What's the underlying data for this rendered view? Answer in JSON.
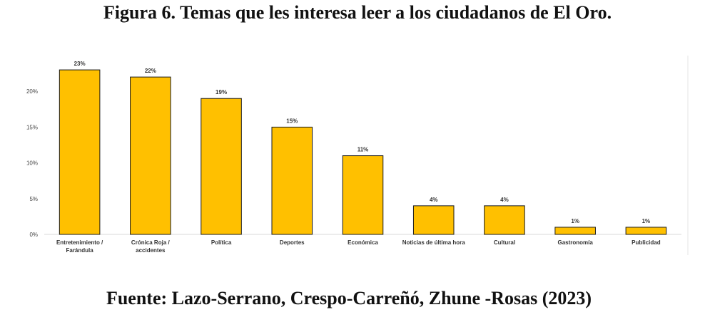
{
  "figure": {
    "title": "Figura 6. Temas que les interesa leer a los ciudadanos de El Oro.",
    "source": "Fuente: Lazo-Serrano, Crespo-Carreñó, Zhune -Rosas (2023)"
  },
  "chart_data": {
    "type": "bar",
    "categories": [
      [
        "Entretenimiento /",
        "Farándula"
      ],
      [
        "Crónica Roja /",
        "accidentes"
      ],
      [
        "Política"
      ],
      [
        "Deportes"
      ],
      [
        "Económica"
      ],
      [
        "Noticias de última hora"
      ],
      [
        "Cultural"
      ],
      [
        "Gastronomía"
      ],
      [
        "Publicidad"
      ]
    ],
    "values": [
      23,
      22,
      19,
      15,
      11,
      4,
      4,
      1,
      1
    ],
    "data_labels": [
      "23%",
      "22%",
      "19%",
      "15%",
      "11%",
      "4%",
      "4%",
      "1%",
      "1%"
    ],
    "yticks": [
      0,
      5,
      10,
      15,
      20
    ],
    "ytick_labels": [
      "0%",
      "5%",
      "10%",
      "15%",
      "20%"
    ],
    "ylim": [
      0,
      25
    ],
    "grid": false,
    "legend": "none",
    "bar_color": "#FFC000",
    "bar_edge_color": "#1a1a1a",
    "title": "",
    "xlabel": "",
    "ylabel": ""
  }
}
